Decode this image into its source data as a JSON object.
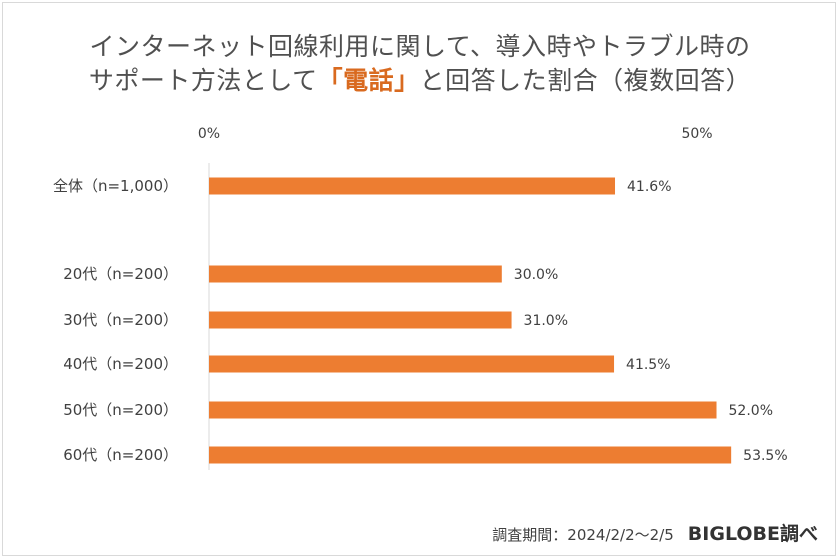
{
  "title": {
    "line1": "インターネット回線利用に関して、導入時やトラブル時の",
    "line2_prefix": "サポート方法として",
    "line2_highlight": "「電話」",
    "line2_suffix": "と回答した割合（複数回答）"
  },
  "colors": {
    "bar": "#ed7d31",
    "highlight": "#d96a1f",
    "axis": "#d9d9d9"
  },
  "chart_data": {
    "type": "bar",
    "orientation": "horizontal",
    "categories": [
      "全体（n=1,000）",
      "20代（n=200）",
      "30代（n=200）",
      "40代（n=200）",
      "50代（n=200）",
      "60代（n=200）"
    ],
    "values": [
      41.6,
      30.0,
      31.0,
      41.5,
      52.0,
      53.5
    ],
    "value_labels": [
      "41.6%",
      "30.0%",
      "31.0%",
      "41.5%",
      "52.0%",
      "53.5%"
    ],
    "xlim": [
      0,
      50
    ],
    "x_ticks": [
      "0%",
      "50%"
    ],
    "xlabel": "",
    "ylabel": "",
    "legend": "none",
    "grid": false
  },
  "footer": {
    "period": "調査期間：2024/2/2〜2/5",
    "brand": "BIGLOBE調べ"
  }
}
